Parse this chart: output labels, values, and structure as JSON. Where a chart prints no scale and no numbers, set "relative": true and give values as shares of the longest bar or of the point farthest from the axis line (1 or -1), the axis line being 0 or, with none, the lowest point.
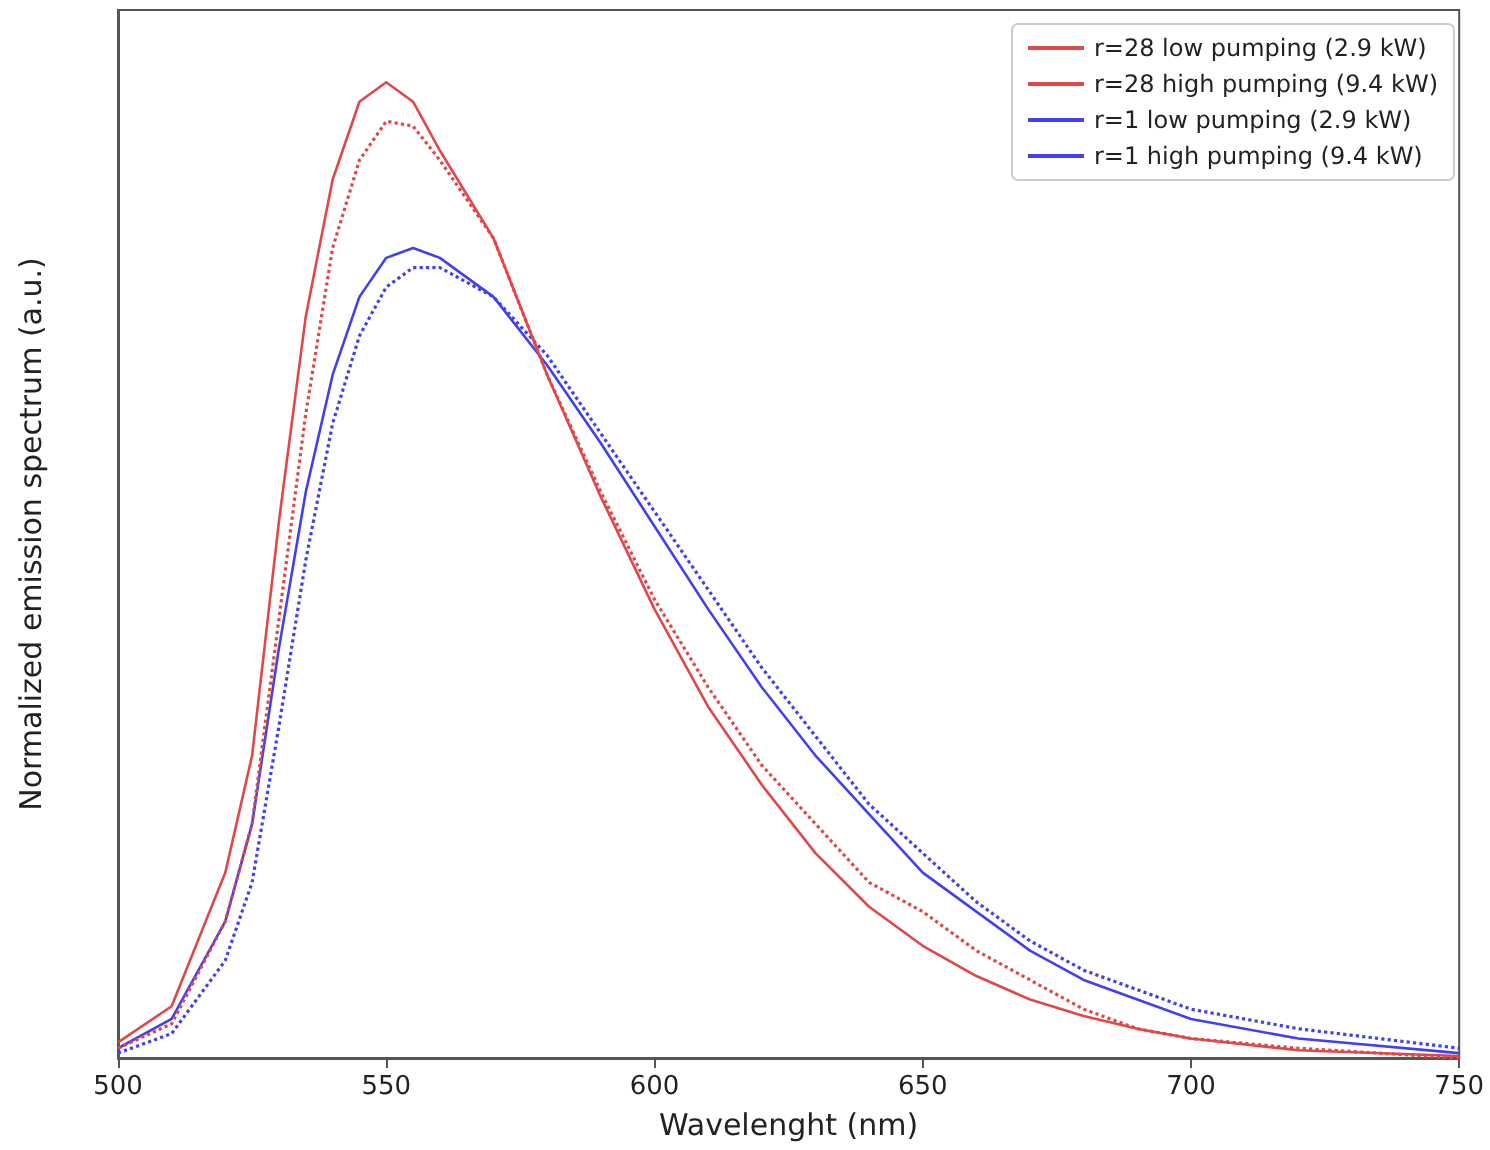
{
  "chart_data": {
    "type": "line",
    "xlabel": "Wavelenght (nm)",
    "ylabel": "Normalized emission spectrum (a.u.)",
    "relative": true,
    "x": [
      500,
      510,
      520,
      525,
      530,
      535,
      540,
      545,
      550,
      555,
      560,
      570,
      580,
      590,
      600,
      610,
      620,
      630,
      640,
      650,
      660,
      670,
      680,
      690,
      700,
      720,
      750
    ],
    "xlim": [
      500,
      750
    ],
    "xticks": [
      500,
      550,
      600,
      650,
      700,
      750
    ],
    "legend": "top right",
    "marker": "none",
    "grid": false,
    "series": [
      {
        "name": "r=28 low pumping (2.9 kW)",
        "color": "#e04848",
        "line_style": "dotted",
        "values": [
          0.01,
          0.035,
          0.14,
          0.24,
          0.45,
          0.66,
          0.83,
          0.92,
          0.96,
          0.955,
          0.92,
          0.84,
          0.7,
          0.58,
          0.47,
          0.38,
          0.3,
          0.24,
          0.18,
          0.15,
          0.11,
          0.08,
          0.05,
          0.03,
          0.02,
          0.01,
          0.0
        ]
      },
      {
        "name": "r=28 high pumping (9.4 kW)",
        "color": "#e04848",
        "line_style": "solid",
        "values": [
          0.016,
          0.053,
          0.19,
          0.31,
          0.55,
          0.76,
          0.9,
          0.98,
          1.0,
          0.98,
          0.93,
          0.84,
          0.7,
          0.575,
          0.46,
          0.36,
          0.28,
          0.21,
          0.155,
          0.115,
          0.084,
          0.06,
          0.043,
          0.03,
          0.02,
          0.008,
          0.002
        ]
      },
      {
        "name": "r=1 low pumping (2.9 kW)",
        "color": "#4040f0",
        "line_style": "dotted",
        "values": [
          0.005,
          0.025,
          0.1,
          0.18,
          0.34,
          0.51,
          0.65,
          0.74,
          0.79,
          0.81,
          0.81,
          0.78,
          0.72,
          0.64,
          0.56,
          0.48,
          0.4,
          0.33,
          0.26,
          0.21,
          0.16,
          0.12,
          0.09,
          0.07,
          0.05,
          0.03,
          0.01
        ]
      },
      {
        "name": "r=1 high pumping (9.4 kW)",
        "color": "#4040f0",
        "line_style": "solid",
        "values": [
          0.01,
          0.04,
          0.14,
          0.24,
          0.42,
          0.58,
          0.7,
          0.78,
          0.82,
          0.83,
          0.82,
          0.78,
          0.71,
          0.63,
          0.545,
          0.46,
          0.38,
          0.31,
          0.25,
          0.19,
          0.15,
          0.11,
          0.08,
          0.06,
          0.04,
          0.02,
          0.005
        ]
      }
    ]
  }
}
